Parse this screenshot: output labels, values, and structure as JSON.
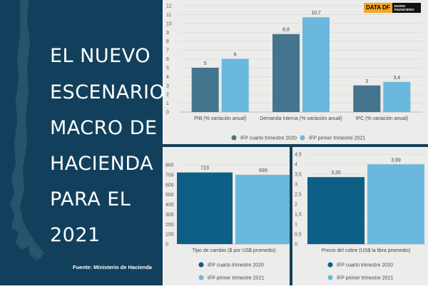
{
  "title_lines": [
    "EL NUEVO",
    "ESCENARIO",
    "MACRO DE",
    "HACIENDA",
    "PARA EL",
    "2021"
  ],
  "source": "Fuente: Ministerio de Hacienda",
  "logo": {
    "part1": "DATA DF",
    "part2": "DIARIO FINANCIERO"
  },
  "colors": {
    "background": "#12405c",
    "series1": "#45748e",
    "series1_alt": "#0d5f86",
    "series2": "#6ab8de",
    "panel": "#ececea"
  },
  "chart_data": [
    {
      "type": "bar",
      "categories": [
        "PIB (% variación anual)",
        "Demanda interna (% variación anual)",
        "IPC (% variación anual)"
      ],
      "series": [
        {
          "name": "IFP cuarto trimestre 2020",
          "values": [
            5,
            8.8,
            3
          ],
          "labels": [
            "5",
            "8,8",
            "3"
          ]
        },
        {
          "name": "IFP primer trimestre 2021",
          "values": [
            6,
            10.7,
            3.4
          ],
          "labels": [
            "6",
            "10,7",
            "3,4"
          ]
        }
      ],
      "ylim": [
        0,
        12
      ],
      "yticks": [
        0,
        1,
        2,
        3,
        4,
        5,
        6,
        7,
        8,
        9,
        10,
        11,
        12
      ],
      "ytick_labels": [
        "0",
        "1",
        "2",
        "3",
        "4",
        "5",
        "6",
        "7",
        "8",
        "9",
        "10",
        "11",
        "12"
      ],
      "grid": true,
      "legend": "bottom"
    },
    {
      "type": "bar",
      "categories": [
        ""
      ],
      "xlabel": "Tipo de cambio ($ por US$ promedio)",
      "series": [
        {
          "name": "IFP cuarto trimestre 2020",
          "values": [
            723
          ],
          "labels": [
            "723"
          ]
        },
        {
          "name": "IFP primer trimestre 2021",
          "values": [
            699
          ],
          "labels": [
            "699"
          ]
        }
      ],
      "ylim": [
        0,
        800
      ],
      "yticks": [
        0,
        100,
        200,
        300,
        400,
        500,
        600,
        700,
        800
      ],
      "ytick_labels": [
        "0",
        "100",
        "200",
        "300",
        "400",
        "500",
        "600",
        "700",
        "800"
      ],
      "grid": true,
      "legend": "bottom"
    },
    {
      "type": "bar",
      "categories": [
        ""
      ],
      "xlabel": "Precio del cobre (US$ la libra promedio)",
      "series": [
        {
          "name": "IFP cuarto trimestre 2020",
          "values": [
            3.35
          ],
          "labels": [
            "3,35"
          ]
        },
        {
          "name": "IFP primer trimestre 2021",
          "values": [
            3.99
          ],
          "labels": [
            "3,99"
          ]
        }
      ],
      "ylim": [
        0,
        4.5
      ],
      "yticks": [
        0,
        0.5,
        1,
        1.5,
        2,
        2.5,
        3,
        3.5,
        4,
        4.5
      ],
      "ytick_labels": [
        "0",
        "0,5",
        "1",
        "1,5",
        "2",
        "2,5",
        "3",
        "3,5",
        "4",
        "4,5"
      ],
      "grid": true,
      "legend": "bottom"
    }
  ]
}
